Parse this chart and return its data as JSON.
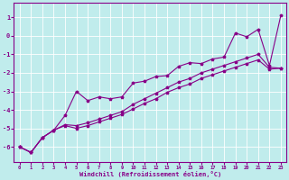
{
  "xlabel": "Windchill (Refroidissement éolien,°C)",
  "background_color": "#c0ecec",
  "line_color": "#880088",
  "grid_color": "#ffffff",
  "xlim": [
    -0.5,
    23.5
  ],
  "ylim": [
    -6.8,
    1.8
  ],
  "yticks": [
    1,
    0,
    -1,
    -2,
    -3,
    -4,
    -5,
    -6
  ],
  "xticks": [
    0,
    1,
    2,
    3,
    4,
    5,
    6,
    7,
    8,
    9,
    10,
    11,
    12,
    13,
    14,
    15,
    16,
    17,
    18,
    19,
    20,
    21,
    22,
    23
  ],
  "curve1_x": [
    0,
    1,
    2,
    3,
    4,
    5,
    6,
    7,
    8,
    9,
    10,
    11,
    12,
    13,
    14,
    15,
    16,
    17,
    18,
    19,
    20,
    21,
    22,
    23
  ],
  "curve1_y": [
    -6.0,
    -6.3,
    -5.5,
    -5.1,
    -4.3,
    -3.0,
    -3.5,
    -3.3,
    -3.4,
    -3.3,
    -2.55,
    -2.45,
    -2.2,
    -2.15,
    -1.65,
    -1.45,
    -1.5,
    -1.25,
    -1.15,
    0.15,
    -0.05,
    0.35,
    -1.6,
    1.1
  ],
  "curve2_x": [
    0,
    1,
    2,
    3,
    4,
    5,
    6,
    7,
    8,
    9,
    10,
    11,
    12,
    13,
    14,
    15,
    16,
    17,
    18,
    19,
    20,
    21,
    22,
    23
  ],
  "curve2_y": [
    -6.0,
    -6.3,
    -5.5,
    -5.1,
    -4.8,
    -4.85,
    -4.7,
    -4.5,
    -4.3,
    -4.1,
    -3.7,
    -3.4,
    -3.1,
    -2.8,
    -2.5,
    -2.3,
    -2.0,
    -1.8,
    -1.6,
    -1.4,
    -1.2,
    -1.0,
    -1.7,
    -1.75
  ],
  "curve3_x": [
    0,
    1,
    2,
    3,
    4,
    5,
    6,
    7,
    8,
    9,
    10,
    11,
    12,
    13,
    14,
    15,
    16,
    17,
    18,
    19,
    20,
    21,
    22,
    23
  ],
  "curve3_y": [
    -6.0,
    -6.3,
    -5.5,
    -5.1,
    -4.85,
    -5.0,
    -4.85,
    -4.65,
    -4.45,
    -4.25,
    -3.95,
    -3.65,
    -3.4,
    -3.05,
    -2.8,
    -2.6,
    -2.3,
    -2.1,
    -1.9,
    -1.7,
    -1.5,
    -1.3,
    -1.8,
    -1.75
  ]
}
